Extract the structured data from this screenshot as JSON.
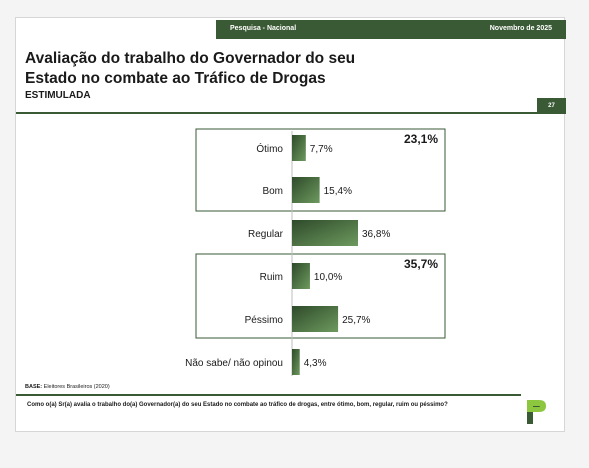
{
  "header": {
    "survey": "Pesquisa - Nacional",
    "date": "Novembro de 2025",
    "page_number": "27"
  },
  "title_line1": "Avaliação do trabalho do Governador do seu",
  "title_line2": "Estado no combate ao Tráfico de Drogas",
  "subtitle": "ESTIMULADA",
  "base_label": "BASE:",
  "base_text": " Eleitores Brasileiros (2020)",
  "question": "Como o(a) Sr(a) avalia o trabalho do(a) Governador(a) do seu Estado no combate ao tráfico de drogas, entre ótimo, bom, regular, ruim ou péssimo?",
  "colors": {
    "accent": "#3a5a35",
    "bar_dark": "#2e4a2a",
    "bar_light": "#6d9a5e",
    "logo_light": "#8dc63f"
  },
  "chart_data": {
    "type": "bar",
    "orientation": "horizontal",
    "categories": [
      "Ótimo",
      "Bom",
      "Regular",
      "Ruim",
      "Péssimo",
      "Não sabe/ não opinou"
    ],
    "values": [
      7.7,
      15.4,
      36.8,
      10.0,
      25.7,
      4.3
    ],
    "value_labels": [
      "7,7%",
      "15,4%",
      "36,8%",
      "10,0%",
      "25,7%",
      "4,3%"
    ],
    "groups": [
      {
        "label": "23,1%",
        "categories": [
          "Ótimo",
          "Bom"
        ]
      },
      {
        "label": "35,7%",
        "categories": [
          "Ruim",
          "Péssimo"
        ]
      }
    ],
    "title": "",
    "xlabel": "",
    "ylabel": "",
    "xlim": [
      0,
      36.8
    ],
    "grid": false,
    "legend": "none"
  }
}
